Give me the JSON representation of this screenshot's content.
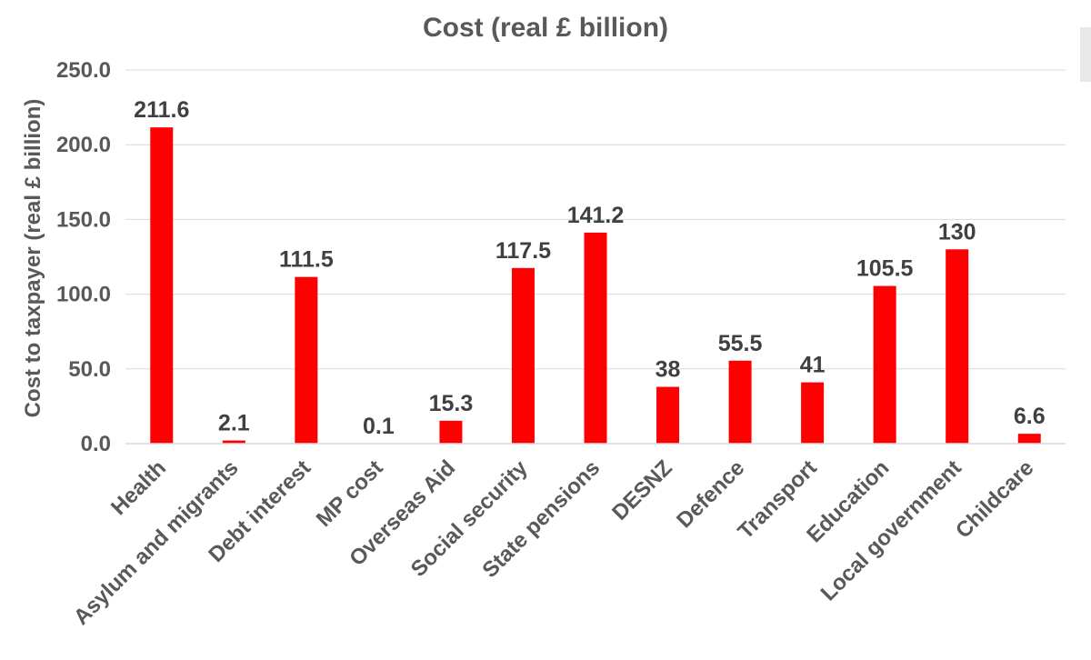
{
  "chart_data": {
    "type": "bar",
    "title": "Cost (real £ billion)",
    "xlabel": "",
    "ylabel": "Cost to taxpayer (real £ billion)",
    "ylim": [
      0,
      250
    ],
    "yticks": [
      "0.0",
      "50.0",
      "100.0",
      "150.0",
      "200.0",
      "250.0"
    ],
    "ytick_values": [
      0,
      50,
      100,
      150,
      200,
      250
    ],
    "grid": true,
    "categories": [
      "Health",
      "Asylum and migrants",
      "Debt interest",
      "MP cost",
      "Overseas Aid",
      "Social security",
      "State pensions",
      "DESNZ",
      "Defence",
      "Transport",
      "Education",
      "Local government",
      "Childcare"
    ],
    "values": [
      211.6,
      2.1,
      111.5,
      0.1,
      15.3,
      117.5,
      141.2,
      38,
      55.5,
      41,
      105.5,
      130,
      6.6
    ],
    "data_labels": [
      "211.6",
      "2.1",
      "111.5",
      "0.1",
      "15.3",
      "117.5",
      "141.2",
      "38",
      "55.5",
      "41",
      "105.5",
      "130",
      "6.6"
    ],
    "bar_color": "#ff0000"
  }
}
